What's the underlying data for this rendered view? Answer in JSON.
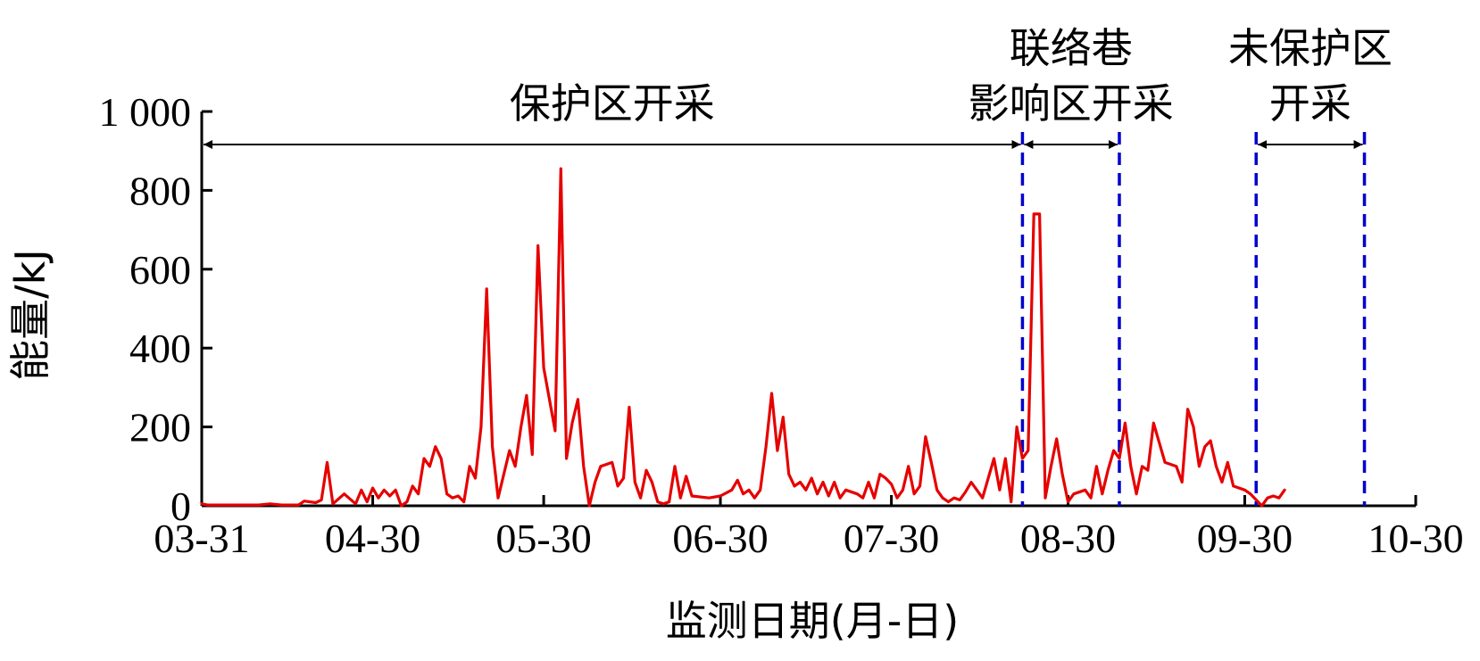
{
  "chart_data": {
    "type": "line",
    "title": "",
    "xlabel": "监测日期(月-日)",
    "ylabel": "能量/kJ",
    "xlim": [
      "03-31",
      "10-30"
    ],
    "ylim": [
      0,
      1000
    ],
    "grid": false,
    "legend": "none",
    "x_ticks": [
      "03-31",
      "04-30",
      "05-30",
      "06-30",
      "07-30",
      "08-30",
      "09-30",
      "10-30"
    ],
    "y_ticks": [
      "0",
      "200",
      "400",
      "600",
      "800",
      "1 000"
    ],
    "colors": {
      "line": "#e60000",
      "boundary": "#0000cc",
      "axis": "#000000"
    },
    "boundaries": [
      "08-22",
      "09-08",
      "10-02",
      "10-21"
    ],
    "regions": [
      {
        "label_lines": [
          "保护区开采"
        ],
        "from": "03-31",
        "to": "08-22"
      },
      {
        "label_lines": [
          "联络巷",
          "影响区开采"
        ],
        "from": "08-22",
        "to": "09-08"
      },
      {
        "label_lines": [
          "未保护区",
          "开采"
        ],
        "from": "10-02",
        "to": "10-21"
      }
    ],
    "series": [
      {
        "values": [
          [
            "03-31",
            5
          ],
          [
            "04-01",
            2
          ],
          [
            "04-05",
            2
          ],
          [
            "04-10",
            2
          ],
          [
            "04-12",
            5
          ],
          [
            "04-14",
            2
          ],
          [
            "04-17",
            2
          ],
          [
            "04-18",
            12
          ],
          [
            "04-20",
            8
          ],
          [
            "04-21",
            15
          ],
          [
            "04-22",
            110
          ],
          [
            "04-23",
            5
          ],
          [
            "04-25",
            30
          ],
          [
            "04-27",
            5
          ],
          [
            "04-28",
            40
          ],
          [
            "04-29",
            10
          ],
          [
            "04-30",
            45
          ],
          [
            "05-01",
            20
          ],
          [
            "05-02",
            40
          ],
          [
            "05-03",
            25
          ],
          [
            "05-04",
            40
          ],
          [
            "05-05",
            0
          ],
          [
            "05-06",
            10
          ],
          [
            "05-07",
            50
          ],
          [
            "05-08",
            30
          ],
          [
            "05-09",
            120
          ],
          [
            "05-10",
            100
          ],
          [
            "05-11",
            150
          ],
          [
            "05-12",
            120
          ],
          [
            "05-13",
            30
          ],
          [
            "05-14",
            20
          ],
          [
            "05-15",
            25
          ],
          [
            "05-16",
            10
          ],
          [
            "05-17",
            100
          ],
          [
            "05-18",
            70
          ],
          [
            "05-19",
            200
          ],
          [
            "05-20",
            550
          ],
          [
            "05-21",
            150
          ],
          [
            "05-22",
            20
          ],
          [
            "05-23",
            80
          ],
          [
            "05-24",
            140
          ],
          [
            "05-25",
            100
          ],
          [
            "05-26",
            200
          ],
          [
            "05-27",
            280
          ],
          [
            "05-28",
            130
          ],
          [
            "05-29",
            660
          ],
          [
            "05-30",
            350
          ],
          [
            "05-31",
            270
          ],
          [
            "06-01",
            190
          ],
          [
            "06-02",
            855
          ],
          [
            "06-03",
            120
          ],
          [
            "06-04",
            210
          ],
          [
            "06-05",
            270
          ],
          [
            "06-06",
            100
          ],
          [
            "06-07",
            0
          ],
          [
            "06-08",
            60
          ],
          [
            "06-09",
            100
          ],
          [
            "06-11",
            110
          ],
          [
            "06-12",
            50
          ],
          [
            "06-13",
            70
          ],
          [
            "06-14",
            250
          ],
          [
            "06-15",
            60
          ],
          [
            "06-16",
            20
          ],
          [
            "06-17",
            90
          ],
          [
            "06-18",
            60
          ],
          [
            "06-19",
            10
          ],
          [
            "06-20",
            5
          ],
          [
            "06-21",
            10
          ],
          [
            "06-22",
            100
          ],
          [
            "06-23",
            20
          ],
          [
            "06-24",
            75
          ],
          [
            "06-25",
            25
          ],
          [
            "06-28",
            20
          ],
          [
            "06-30",
            25
          ],
          [
            "07-02",
            40
          ],
          [
            "07-03",
            65
          ],
          [
            "07-04",
            30
          ],
          [
            "07-05",
            40
          ],
          [
            "07-06",
            20
          ],
          [
            "07-07",
            40
          ],
          [
            "07-08",
            150
          ],
          [
            "07-09",
            285
          ],
          [
            "07-10",
            140
          ],
          [
            "07-11",
            225
          ],
          [
            "07-12",
            80
          ],
          [
            "07-13",
            50
          ],
          [
            "07-14",
            60
          ],
          [
            "07-15",
            40
          ],
          [
            "07-16",
            70
          ],
          [
            "07-17",
            30
          ],
          [
            "07-18",
            60
          ],
          [
            "07-19",
            25
          ],
          [
            "07-20",
            60
          ],
          [
            "07-21",
            20
          ],
          [
            "07-22",
            40
          ],
          [
            "07-24",
            30
          ],
          [
            "07-25",
            20
          ],
          [
            "07-26",
            60
          ],
          [
            "07-27",
            20
          ],
          [
            "07-28",
            80
          ],
          [
            "07-29",
            70
          ],
          [
            "07-30",
            55
          ],
          [
            "07-31",
            20
          ],
          [
            "08-01",
            40
          ],
          [
            "08-02",
            100
          ],
          [
            "08-03",
            30
          ],
          [
            "08-04",
            50
          ],
          [
            "08-05",
            175
          ],
          [
            "08-06",
            110
          ],
          [
            "08-07",
            40
          ],
          [
            "08-08",
            20
          ],
          [
            "08-09",
            10
          ],
          [
            "08-10",
            20
          ],
          [
            "08-11",
            15
          ],
          [
            "08-12",
            35
          ],
          [
            "08-13",
            60
          ],
          [
            "08-15",
            20
          ],
          [
            "08-17",
            120
          ],
          [
            "08-18",
            40
          ],
          [
            "08-19",
            120
          ],
          [
            "08-20",
            10
          ],
          [
            "08-21",
            200
          ],
          [
            "08-22",
            120
          ],
          [
            "08-23",
            140
          ],
          [
            "08-24",
            740
          ],
          [
            "08-25",
            740
          ],
          [
            "08-26",
            20
          ],
          [
            "08-27",
            100
          ],
          [
            "08-28",
            170
          ],
          [
            "08-29",
            80
          ],
          [
            "08-30",
            10
          ],
          [
            "08-31",
            30
          ],
          [
            "09-02",
            40
          ],
          [
            "09-03",
            20
          ],
          [
            "09-04",
            100
          ],
          [
            "09-05",
            30
          ],
          [
            "09-06",
            90
          ],
          [
            "09-07",
            140
          ],
          [
            "09-08",
            120
          ],
          [
            "09-09",
            210
          ],
          [
            "09-10",
            100
          ],
          [
            "09-11",
            30
          ],
          [
            "09-12",
            100
          ],
          [
            "09-13",
            90
          ],
          [
            "09-14",
            210
          ],
          [
            "09-15",
            160
          ],
          [
            "09-16",
            110
          ],
          [
            "09-18",
            100
          ],
          [
            "09-19",
            60
          ],
          [
            "09-20",
            245
          ],
          [
            "09-21",
            200
          ],
          [
            "09-22",
            100
          ],
          [
            "09-23",
            150
          ],
          [
            "09-24",
            165
          ],
          [
            "09-25",
            100
          ],
          [
            "09-26",
            60
          ],
          [
            "09-27",
            110
          ],
          [
            "09-28",
            50
          ],
          [
            "09-30",
            40
          ],
          [
            "10-01",
            30
          ],
          [
            "10-03",
            0
          ],
          [
            "10-04",
            20
          ],
          [
            "10-05",
            25
          ],
          [
            "10-06",
            20
          ],
          [
            "10-07",
            40
          ]
        ]
      }
    ]
  }
}
